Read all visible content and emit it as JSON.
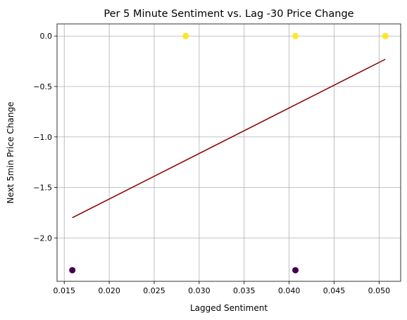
{
  "chart_data": {
    "type": "scatter",
    "title": "Per 5 Minute Sentiment vs. Lag -30 Price Change",
    "xlabel": "Lagged Sentiment",
    "ylabel": "Next 5min Price Change",
    "xlim": [
      0.0142,
      0.0524
    ],
    "ylim": [
      -2.43,
      0.12
    ],
    "xticks": [
      0.015,
      0.02,
      0.025,
      0.03,
      0.035,
      0.04,
      0.045,
      0.05
    ],
    "xtick_labels": [
      "0.015",
      "0.020",
      "0.025",
      "0.030",
      "0.035",
      "0.040",
      "0.045",
      "0.050"
    ],
    "yticks": [
      0.0,
      -0.5,
      -1.0,
      -1.5,
      -2.0
    ],
    "ytick_labels": [
      "0.0",
      "−0.5",
      "−1.0",
      "−1.5",
      "−2.0"
    ],
    "grid": true,
    "points": [
      {
        "x": 0.0159,
        "y": -2.32,
        "color": "#440154"
      },
      {
        "x": 0.0407,
        "y": -2.32,
        "color": "#440154"
      },
      {
        "x": 0.0285,
        "y": 0.0,
        "color": "#fde725"
      },
      {
        "x": 0.0407,
        "y": 0.0,
        "color": "#fde725"
      },
      {
        "x": 0.0507,
        "y": 0.0,
        "color": "#fde725"
      }
    ],
    "fit_line": {
      "x": [
        0.0159,
        0.0507
      ],
      "y": [
        -1.8,
        -0.23
      ],
      "color": "#8b0000"
    }
  }
}
